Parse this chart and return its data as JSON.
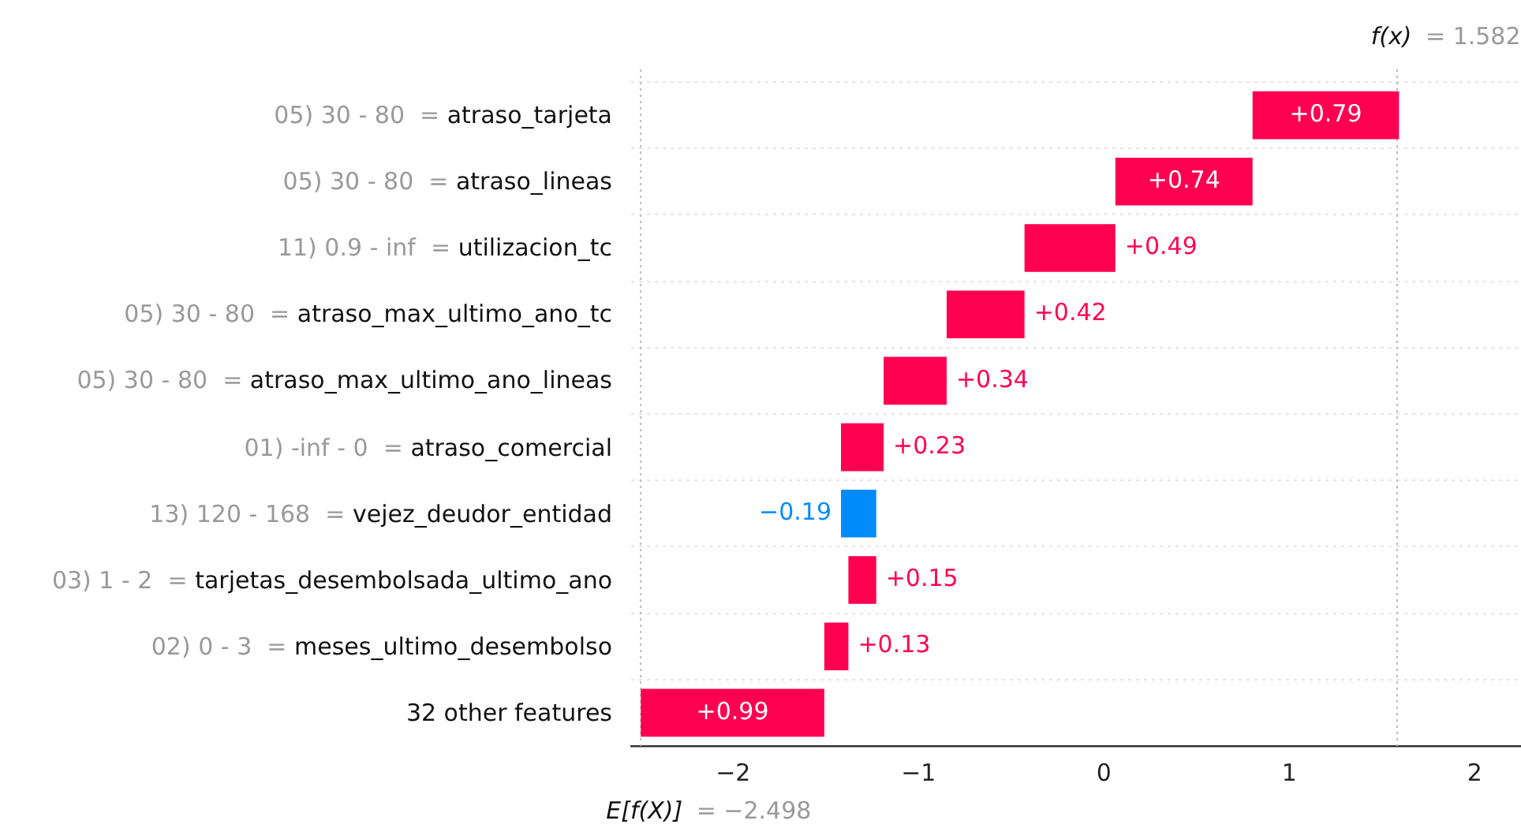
{
  "chart_data": {
    "type": "bar",
    "orientation": "horizontal",
    "categories": [
      "05) 30 - 80  = atraso_tarjeta",
      "05) 30 - 80  = atraso_lineas",
      "11) 0.9 - inf  = utilizacion_tc",
      "05) 30 - 80  = atraso_max_ultimo_ano_tc",
      "05) 30 - 80  = atraso_max_ultimo_ano_lineas",
      "01) -inf - 0  = atraso_comercial",
      "13) 120 - 168  = vejez_deudor_entidad",
      "03) 1 - 2  = tarjetas_desembolsada_ultimo_ano",
      "02) 0 - 3  = meses_ultimo_desembolso",
      "32 other features"
    ],
    "values": [
      0.79,
      0.74,
      0.49,
      0.42,
      0.34,
      0.23,
      -0.19,
      0.15,
      0.13,
      0.99
    ],
    "base": [
      0.802,
      0.062,
      -0.428,
      -0.848,
      -1.188,
      -1.418,
      -1.228,
      -1.378,
      -1.508,
      -2.498
    ],
    "colors": [
      "#ff0051",
      "#ff0051",
      "#ff0051",
      "#ff0051",
      "#ff0051",
      "#ff0051",
      "#008bfb",
      "#ff0051",
      "#ff0051",
      "#ff0051"
    ],
    "value_labels": [
      "+0.79",
      "+0.74",
      "+0.49",
      "+0.42",
      "+0.34",
      "+0.23",
      "−0.19",
      "+0.15",
      "+0.13",
      "+0.99"
    ],
    "xlim": [
      -2.55,
      2.25
    ],
    "xticks": [
      {
        "value": -2.498,
        "label": null
      },
      {
        "value": -2,
        "label": "−2"
      },
      {
        "value": -1,
        "label": "−1"
      },
      0,
      1,
      2
    ],
    "ref_lines": [
      {
        "axis": "x",
        "value": 1.582,
        "label": "f(x) = 1.582",
        "line_style": "dotted",
        "color": "#bbbbbb"
      },
      {
        "axis": "x",
        "value": -2.498,
        "label": "E[f(X)] = −2.498",
        "line_style": "dotted",
        "color": "#bbbbbb"
      }
    ],
    "grid": "y",
    "legend": false
  }
}
